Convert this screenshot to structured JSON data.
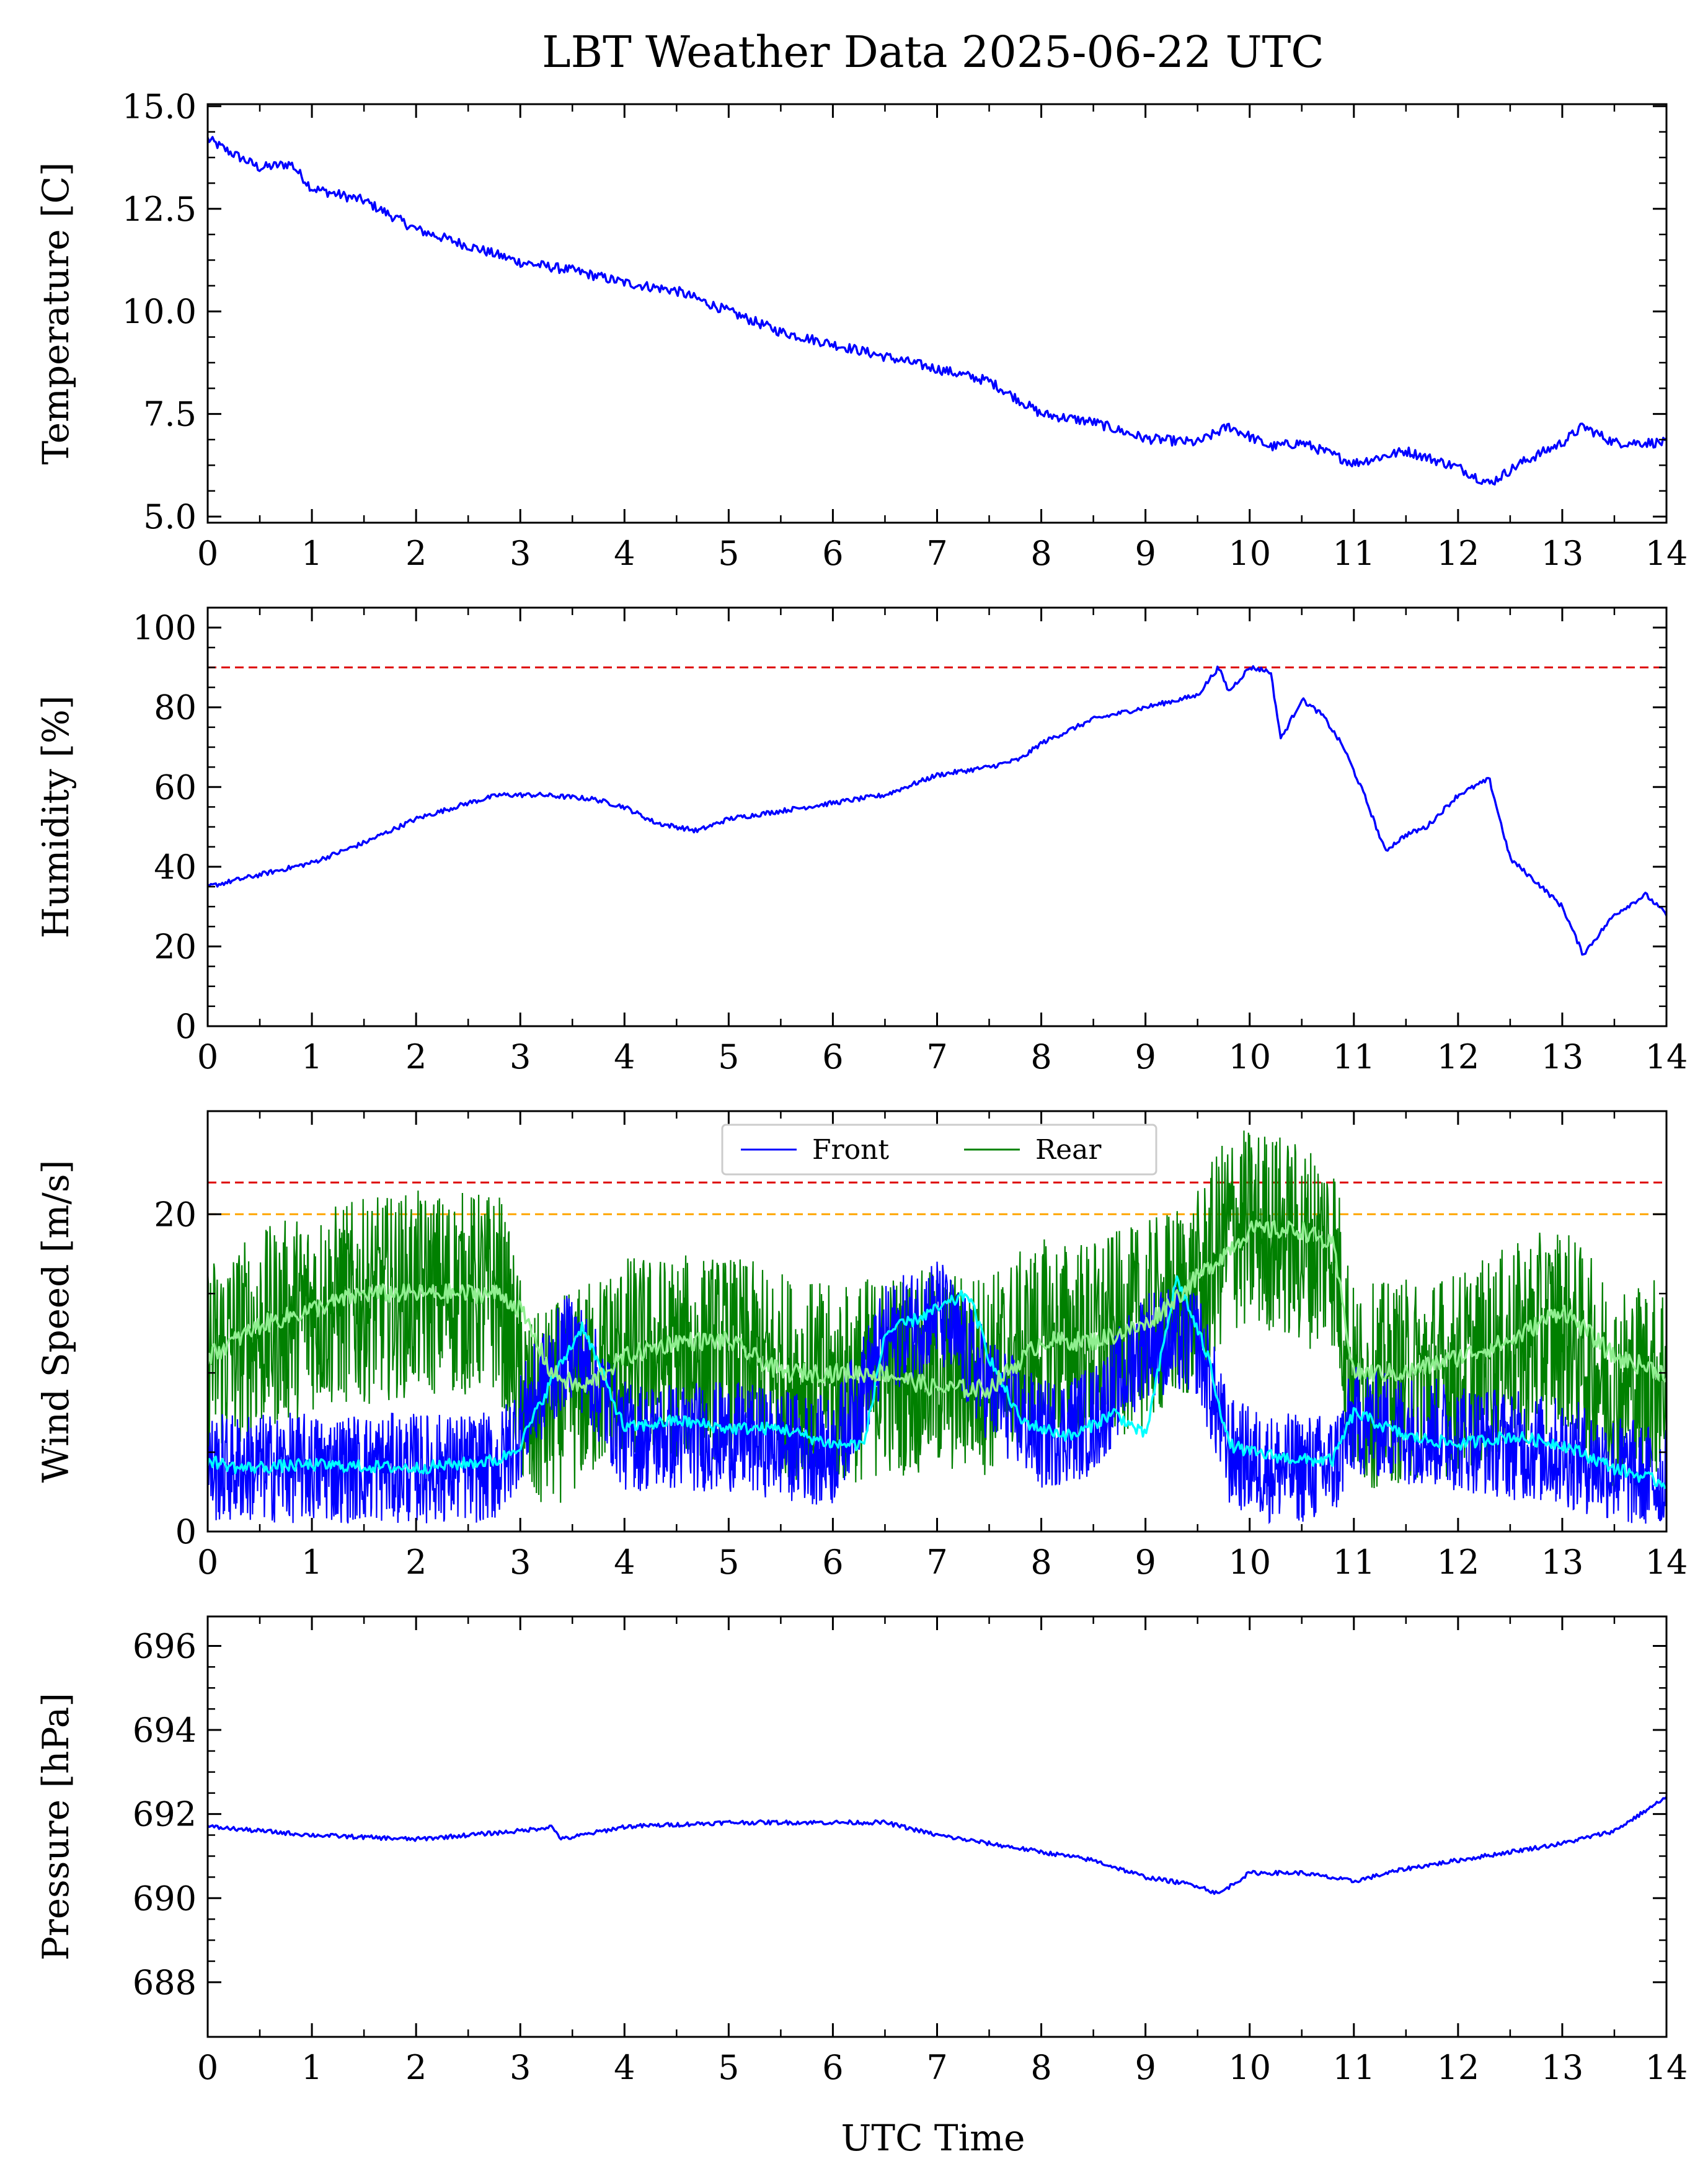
{
  "title": "LBT Weather Data 2025-06-22 UTC",
  "xlabel": "UTC Time",
  "colors": {
    "front": "#0000ff",
    "rear": "#008000",
    "front_avg": "#00ffff",
    "rear_avg": "#90ee90",
    "red_limit": "#dd0000",
    "orange_limit": "#ffa500"
  },
  "chart_data": [
    {
      "type": "line",
      "ylabel": "Temperature [C]",
      "xlim": [
        0,
        14
      ],
      "ylim": [
        4.85,
        15.05
      ],
      "xticks": [
        0,
        1,
        2,
        3,
        4,
        5,
        6,
        7,
        8,
        9,
        10,
        11,
        12,
        13,
        14
      ],
      "yticks": [
        5.0,
        7.5,
        10.0,
        12.5,
        15.0
      ],
      "ytick_labels": [
        "5.0",
        "7.5",
        "10.0",
        "12.5",
        "15.0"
      ],
      "series": [
        {
          "color": "#0000ff",
          "noise": 0.12,
          "x": [
            0,
            0.2,
            0.5,
            0.8,
            1.0,
            1.5,
            2.0,
            2.5,
            3.0,
            3.5,
            4.0,
            4.5,
            5.0,
            5.5,
            6.0,
            6.5,
            7.0,
            7.5,
            8.0,
            8.5,
            9.0,
            9.5,
            9.8,
            10.2,
            10.5,
            10.8,
            11.0,
            11.5,
            12.0,
            12.3,
            12.6,
            13.0,
            13.2,
            13.5,
            14.0
          ],
          "y": [
            14.2,
            13.9,
            13.5,
            13.6,
            13.0,
            12.7,
            12.0,
            11.6,
            11.2,
            11.0,
            10.7,
            10.5,
            10.0,
            9.5,
            9.2,
            8.9,
            8.6,
            8.3,
            7.5,
            7.3,
            6.9,
            6.8,
            7.2,
            6.7,
            6.8,
            6.5,
            6.3,
            6.6,
            6.2,
            5.8,
            6.3,
            6.8,
            7.2,
            6.8,
            6.8
          ]
        }
      ],
      "hlines": []
    },
    {
      "type": "line",
      "ylabel": "Humidity [%]",
      "xlim": [
        0,
        14
      ],
      "ylim": [
        0,
        105
      ],
      "xticks": [
        0,
        1,
        2,
        3,
        4,
        5,
        6,
        7,
        8,
        9,
        10,
        11,
        12,
        13,
        14
      ],
      "yticks": [
        0,
        20,
        40,
        60,
        80,
        100
      ],
      "ytick_labels": [
        "0",
        "20",
        "40",
        "60",
        "80",
        "100"
      ],
      "series": [
        {
          "color": "#0000ff",
          "noise": 0.6,
          "x": [
            0,
            0.5,
            1.0,
            1.5,
            2.0,
            2.5,
            2.8,
            3.2,
            3.7,
            4.0,
            4.3,
            4.7,
            5.0,
            5.5,
            6.0,
            6.5,
            7.0,
            7.5,
            7.8,
            8.0,
            8.5,
            9.0,
            9.5,
            9.7,
            9.8,
            10.0,
            10.2,
            10.3,
            10.5,
            10.7,
            10.9,
            11.1,
            11.3,
            11.5,
            11.7,
            12.0,
            12.3,
            12.5,
            12.8,
            13.0,
            13.2,
            13.5,
            13.8,
            14.0
          ],
          "y": [
            35,
            38,
            41,
            46,
            52,
            56,
            58,
            58,
            57,
            55,
            51,
            49,
            52,
            54,
            56,
            58,
            63,
            65,
            67,
            71,
            77,
            80,
            83,
            90,
            84,
            90,
            89,
            72,
            82,
            78,
            70,
            58,
            44,
            48,
            50,
            58,
            62,
            42,
            35,
            30,
            18,
            28,
            33,
            28
          ]
        }
      ],
      "hlines": [
        {
          "y": 90,
          "color": "#dd0000"
        }
      ]
    },
    {
      "type": "line",
      "ylabel": "Wind Speed [m/s]",
      "xlim": [
        0,
        14
      ],
      "ylim": [
        0,
        26.5
      ],
      "xticks": [
        0,
        1,
        2,
        3,
        4,
        5,
        6,
        7,
        8,
        9,
        10,
        11,
        12,
        13,
        14
      ],
      "yticks": [
        0,
        20
      ],
      "ytick_labels": [
        "0",
        "20"
      ],
      "legend": {
        "position": "top-center",
        "entries": [
          {
            "label": "Front",
            "color": "#0000ff"
          },
          {
            "label": "Rear",
            "color": "#008000"
          }
        ]
      },
      "series": [
        {
          "color": "#008000",
          "noisy_band": true,
          "noise": 6.5,
          "x": [
            0,
            1.0,
            2.0,
            2.8,
            3.1,
            4.0,
            5.0,
            6.0,
            6.5,
            7.0,
            7.5,
            8.0,
            8.5,
            9.0,
            9.5,
            9.8,
            10.2,
            10.5,
            10.8,
            11.0,
            12.0,
            13.0,
            13.5,
            14.0
          ],
          "y": [
            11,
            14,
            15,
            15,
            7,
            11,
            11,
            9,
            10,
            10,
            10,
            12,
            12,
            13,
            15,
            19,
            19,
            18,
            18,
            9,
            10,
            13,
            9,
            10
          ]
        },
        {
          "color": "#0000ff",
          "noisy_band": true,
          "noise": 3.5,
          "x": [
            0,
            1.0,
            2.0,
            2.8,
            3.1,
            3.5,
            4.0,
            5.0,
            6.0,
            6.5,
            7.0,
            7.5,
            8.0,
            8.5,
            9.0,
            9.5,
            9.8,
            10.2,
            10.8,
            11.0,
            12.0,
            13.0,
            14.0
          ],
          "y": [
            4,
            4,
            4,
            4,
            8,
            12,
            6,
            6,
            5,
            12,
            14,
            9,
            6,
            7,
            12,
            12,
            5,
            4,
            4,
            7,
            6,
            5,
            3
          ]
        },
        {
          "color": "#00ffff",
          "noise": 0.4,
          "x": [
            0,
            0.3,
            1.0,
            2.0,
            2.8,
            3.0,
            3.3,
            3.6,
            4.0,
            4.5,
            5.0,
            5.5,
            6.0,
            6.3,
            6.5,
            7.0,
            7.3,
            7.5,
            7.8,
            8.0,
            8.3,
            8.7,
            9.0,
            9.3,
            9.6,
            9.8,
            10.0,
            10.5,
            10.8,
            11.0,
            11.5,
            12.0,
            12.5,
            13.0,
            13.5,
            14.0
          ],
          "y": [
            4.5,
            4.0,
            4.2,
            4.0,
            4.5,
            5.5,
            9.5,
            13.0,
            6.5,
            7.0,
            6.5,
            6.5,
            5.5,
            5.5,
            12.5,
            14.0,
            15.0,
            11.0,
            7.0,
            6.5,
            6.0,
            7.5,
            6.0,
            16.0,
            11.0,
            5.5,
            5.0,
            4.5,
            4.5,
            7.5,
            6.0,
            5.5,
            6.0,
            5.5,
            4.0,
            3.0
          ]
        },
        {
          "color": "#90ee90",
          "noise": 0.6,
          "x": [
            0,
            0.5,
            1.0,
            1.5,
            2.0,
            2.5,
            2.8,
            3.0,
            3.3,
            3.6,
            4.0,
            4.5,
            5.0,
            5.5,
            6.0,
            6.5,
            7.0,
            7.5,
            8.0,
            8.5,
            9.0,
            9.5,
            10.0,
            10.5,
            10.8,
            11.0,
            11.5,
            12.0,
            12.5,
            13.0,
            13.5,
            14.0
          ],
          "y": [
            11,
            13,
            14,
            15,
            15,
            15,
            15,
            14,
            10,
            9,
            11,
            12,
            12,
            10,
            10,
            10,
            9,
            9,
            12,
            12,
            13,
            16,
            19,
            19,
            18,
            10,
            10,
            11,
            12,
            14,
            11,
            10
          ]
        }
      ],
      "hlines": [
        {
          "y": 22,
          "color": "#dd0000"
        },
        {
          "y": 20,
          "color": "#ffa500"
        }
      ]
    },
    {
      "type": "line",
      "ylabel": "Pressure [hPa]",
      "xlim": [
        0,
        14
      ],
      "ylim": [
        686.7,
        696.7
      ],
      "xticks": [
        0,
        1,
        2,
        3,
        4,
        5,
        6,
        7,
        8,
        9,
        10,
        11,
        12,
        13,
        14
      ],
      "yticks": [
        688,
        690,
        692,
        694,
        696
      ],
      "ytick_labels": [
        "688",
        "690",
        "692",
        "694",
        "696"
      ],
      "series": [
        {
          "color": "#0000ff",
          "noise": 0.05,
          "x": [
            0,
            0.5,
            1.0,
            2.0,
            2.5,
            3.0,
            3.3,
            3.4,
            3.6,
            4.0,
            5.0,
            5.5,
            6.0,
            6.5,
            7.0,
            7.5,
            8.0,
            8.5,
            9.0,
            9.5,
            9.7,
            10.0,
            10.5,
            11.0,
            11.5,
            12.0,
            12.5,
            13.0,
            13.5,
            14.0
          ],
          "y": [
            691.7,
            691.6,
            691.5,
            691.4,
            691.5,
            691.6,
            691.7,
            691.4,
            691.5,
            691.7,
            691.8,
            691.8,
            691.8,
            691.8,
            691.5,
            691.3,
            691.1,
            690.9,
            690.5,
            690.3,
            690.1,
            690.6,
            690.6,
            690.4,
            690.7,
            690.9,
            691.1,
            691.3,
            691.6,
            692.4
          ]
        }
      ],
      "hlines": []
    }
  ]
}
